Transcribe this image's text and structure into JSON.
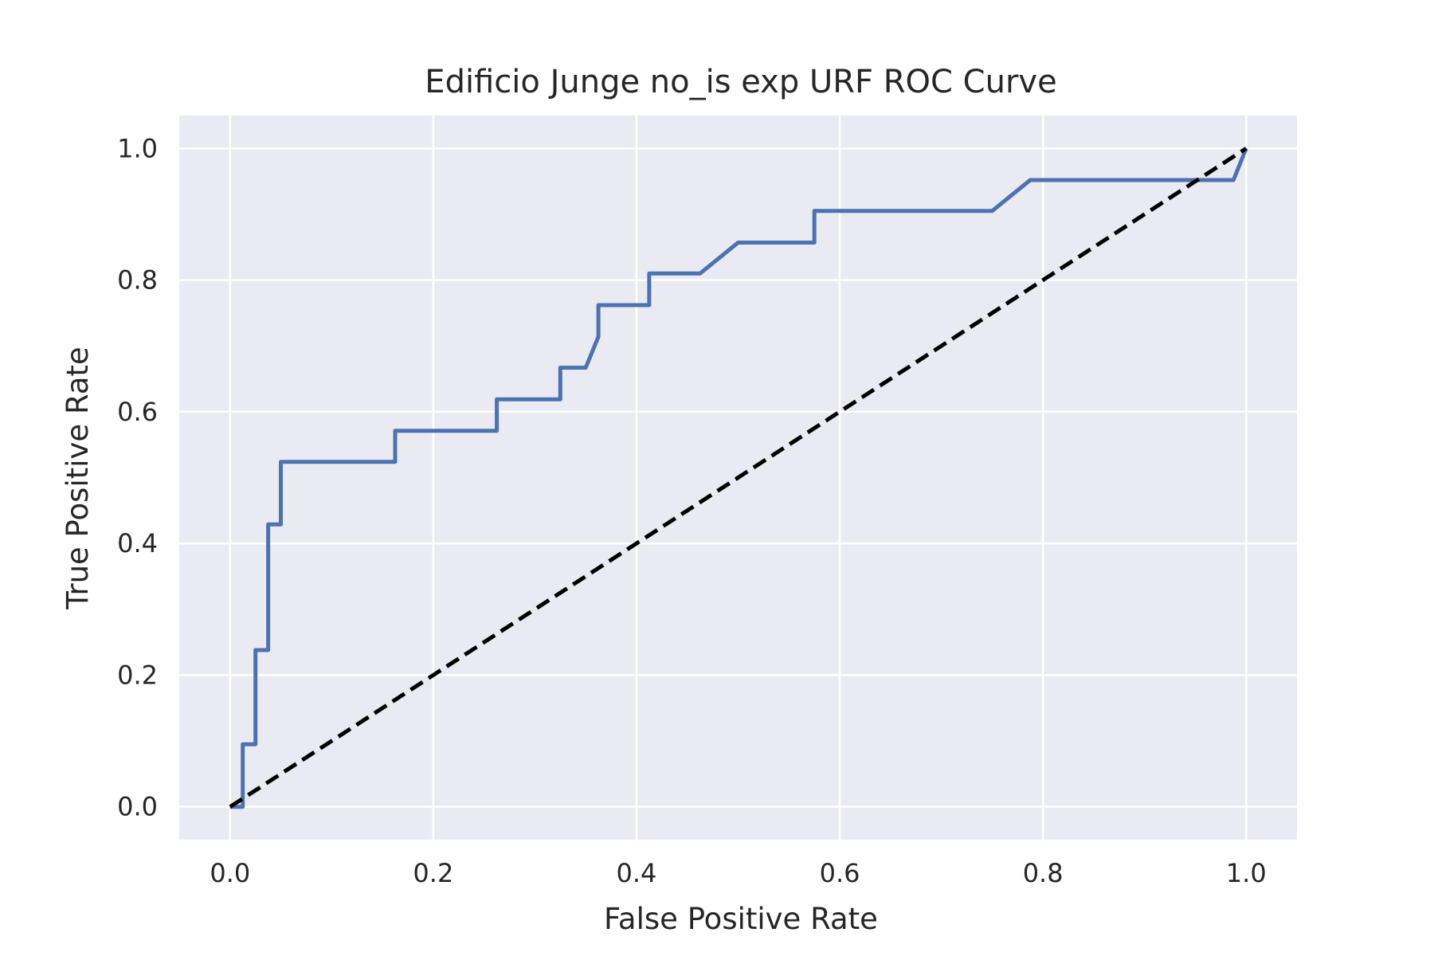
{
  "chart_data": {
    "type": "line",
    "title": "Edificio Junge no_is exp URF ROC Curve",
    "xlabel": "False Positive Rate",
    "ylabel": "True Positive Rate",
    "xlim": [
      -0.05,
      1.05
    ],
    "ylim": [
      -0.05,
      1.05
    ],
    "xticks": [
      0.0,
      0.2,
      0.4,
      0.6,
      0.8,
      1.0
    ],
    "yticks": [
      0.0,
      0.2,
      0.4,
      0.6,
      0.8,
      1.0
    ],
    "xtick_labels": [
      "0.0",
      "0.2",
      "0.4",
      "0.6",
      "0.8",
      "1.0"
    ],
    "ytick_labels": [
      "0.0",
      "0.2",
      "0.4",
      "0.6",
      "0.8",
      "1.0"
    ],
    "grid": true,
    "legend": false,
    "colors": {
      "background": "#eaeaf2",
      "grid": "#ffffff",
      "roc": "#4c72b0",
      "diagonal": "#000000"
    },
    "series": [
      {
        "x": [
          0.0,
          0.0125,
          0.0125,
          0.025,
          0.025,
          0.0375,
          0.0375,
          0.05,
          0.05,
          0.1625,
          0.1625,
          0.2625,
          0.2625,
          0.325,
          0.325,
          0.35,
          0.3625,
          0.3625,
          0.4125,
          0.4125,
          0.4625,
          0.5,
          0.575,
          0.575,
          0.75,
          0.7875,
          0.9875,
          1.0
        ],
        "y": [
          0.0,
          0.0,
          0.095,
          0.095,
          0.238,
          0.238,
          0.429,
          0.429,
          0.524,
          0.524,
          0.571,
          0.571,
          0.619,
          0.619,
          0.667,
          0.667,
          0.714,
          0.762,
          0.762,
          0.81,
          0.81,
          0.857,
          0.857,
          0.905,
          0.905,
          0.952,
          0.952,
          1.0
        ],
        "style": "solid"
      },
      {
        "x": [
          0.0,
          1.0
        ],
        "y": [
          0.0,
          1.0
        ],
        "style": "dashed"
      }
    ]
  }
}
